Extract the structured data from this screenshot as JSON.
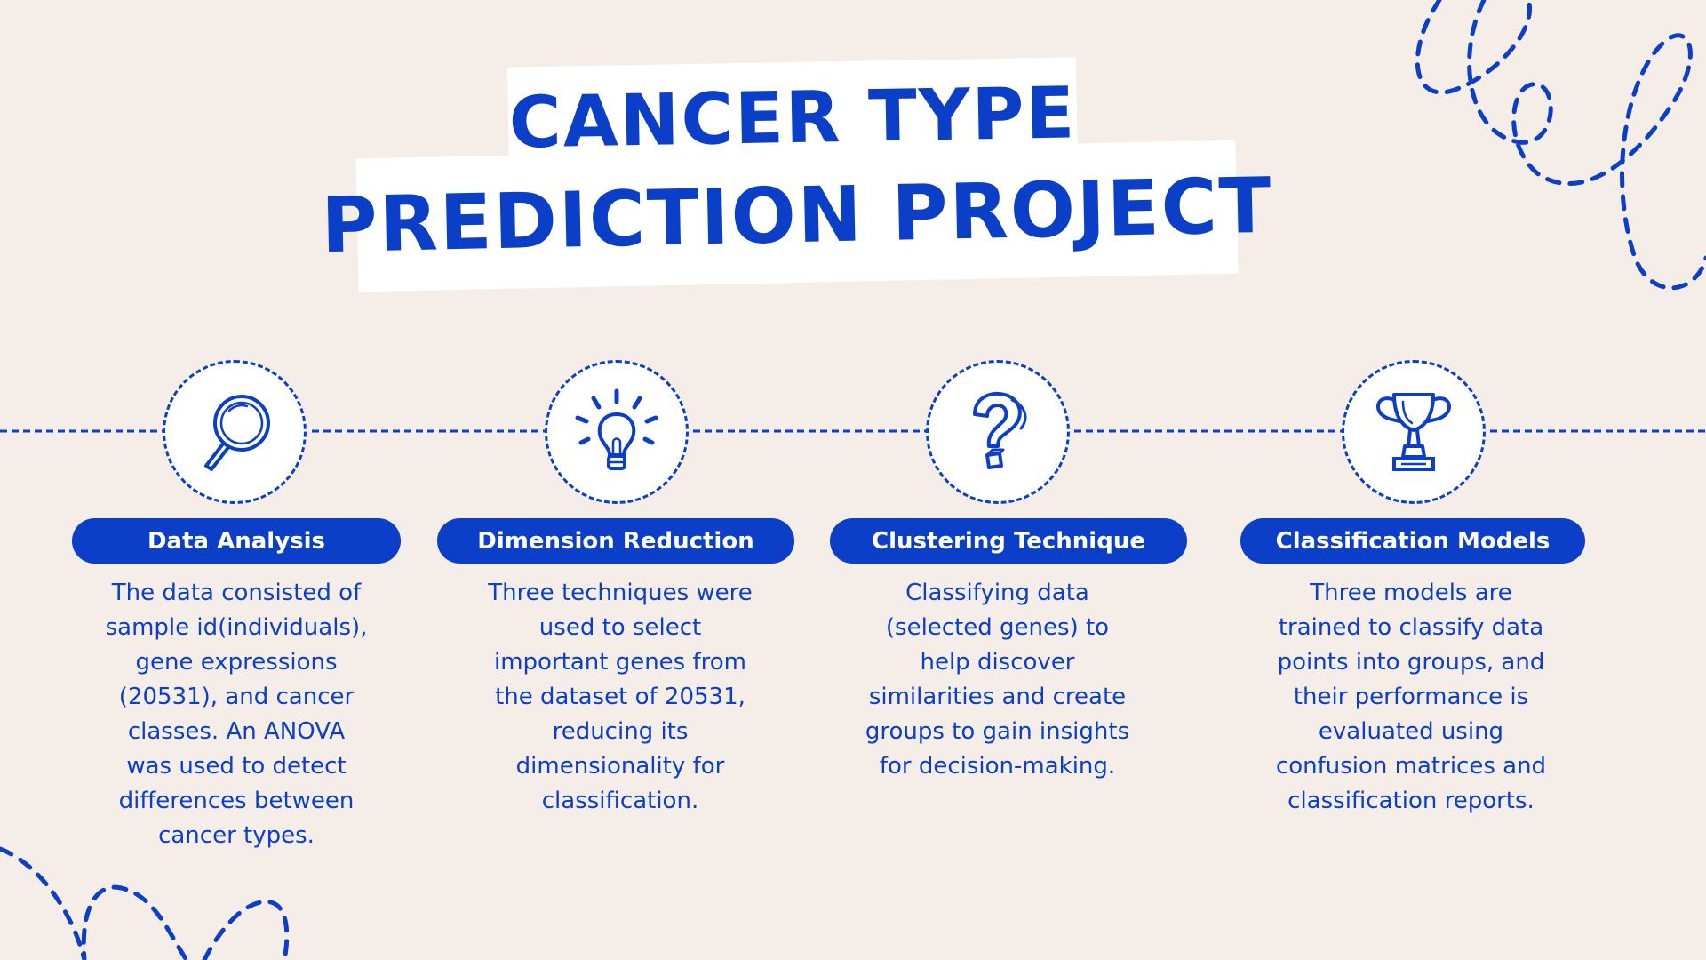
{
  "title": {
    "line1": "CANCER TYPE",
    "line2": "PREDICTION PROJECT"
  },
  "steps": [
    {
      "label": "Data Analysis",
      "icon": "magnifying-glass-icon",
      "description": "The data consisted of sample id(individuals), gene expressions (20531), and cancer classes. An ANOVA was used to detect differences between cancer types."
    },
    {
      "label": "Dimension Reduction",
      "icon": "lightbulb-icon",
      "description": "Three techniques were used to select important genes from the dataset of 20531, reducing its dimensionality for classification."
    },
    {
      "label": "Clustering Technique",
      "icon": "question-mark-icon",
      "description": "Classifying data (selected genes) to help discover similarities and create groups to gain insights for decision-making."
    },
    {
      "label": "Classification Models",
      "icon": "trophy-icon",
      "description": "Three models are trained to classify data points into groups, and their performance is evaluated using confusion matrices and classification reports."
    }
  ],
  "colors": {
    "background": "#f5ede7",
    "accent": "#0b3fc7",
    "white": "#ffffff"
  }
}
